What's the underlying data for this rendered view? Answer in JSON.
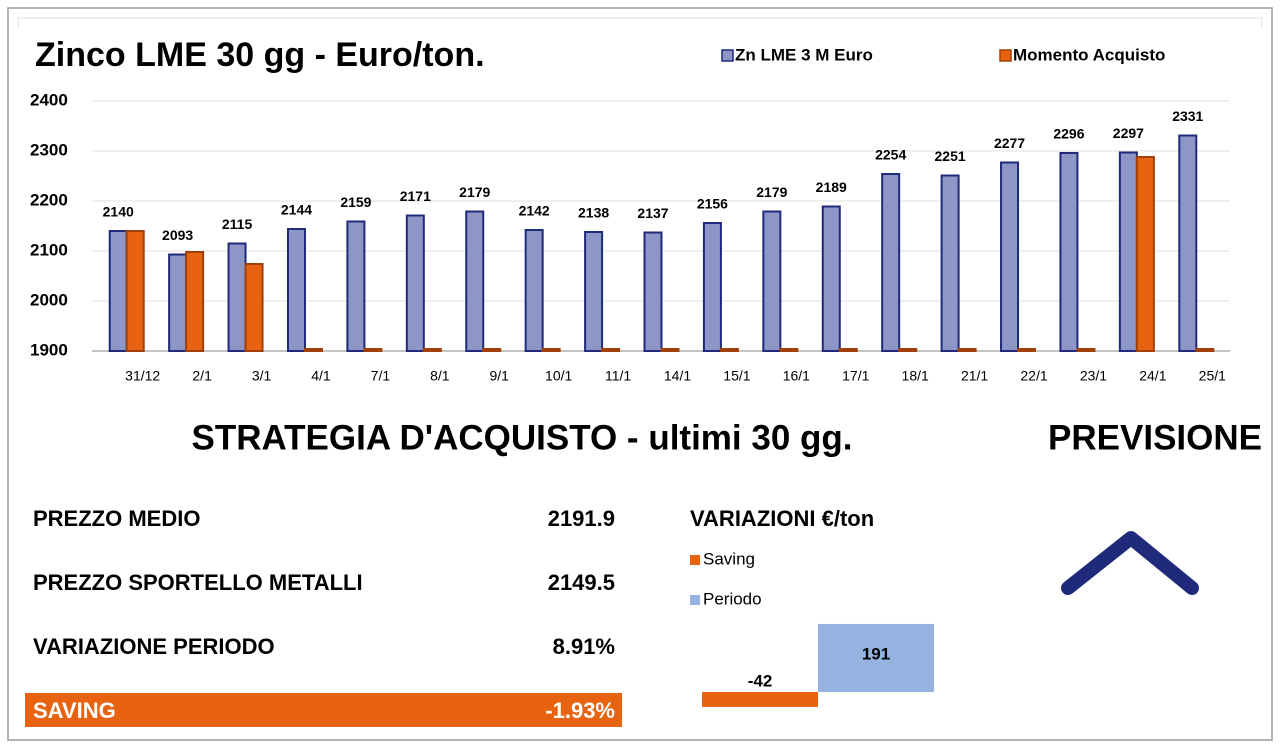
{
  "chart_data": [
    {
      "type": "bar",
      "title": "Zinco  LME 30 gg - Euro/ton.",
      "categories": [
        "31/12",
        "2/1",
        "3/1",
        "4/1",
        "7/1",
        "8/1",
        "9/1",
        "10/1",
        "11/1",
        "14/1",
        "15/1",
        "16/1",
        "17/1",
        "18/1",
        "21/1",
        "22/1",
        "23/1",
        "24/1",
        "25/1"
      ],
      "series": [
        {
          "name": "Zn LME 3 M Euro",
          "color": "#8e96c8",
          "values": [
            2140,
            2093,
            2115,
            2144,
            2159,
            2171,
            2179,
            2142,
            2138,
            2137,
            2156,
            2179,
            2189,
            2254,
            2251,
            2277,
            2296,
            2297,
            2331
          ]
        },
        {
          "name": "Momento Acquisto",
          "color": "#e8630f",
          "values": [
            2140,
            2098,
            2074,
            1904,
            1904,
            1904,
            1904,
            1904,
            1904,
            1904,
            1904,
            1904,
            1904,
            1904,
            1904,
            1904,
            1904,
            2288,
            1904
          ]
        }
      ],
      "ylim": [
        1900,
        2400
      ],
      "yticks": [
        1900,
        2000,
        2100,
        2200,
        2300,
        2400
      ],
      "grid": true
    },
    {
      "type": "bar",
      "title": "VARIAZIONI €/ton",
      "categories": [
        null
      ],
      "series": [
        {
          "name": "Saving",
          "color": "#e8630f",
          "values": [
            -42
          ]
        },
        {
          "name": "Periodo",
          "color": "#95b3e0",
          "values": [
            191
          ]
        }
      ]
    }
  ],
  "panel": {
    "title": "STRATEGIA D'ACQUISTO - ultimi 30 gg.",
    "forecast": "PREVISIONE",
    "rows": [
      [
        "PREZZO MEDIO",
        "2191.9"
      ],
      [
        "PREZZO SPORTELLO METALLI",
        "2149.5"
      ],
      [
        "VARIAZIONE PERIODO",
        "8.91%"
      ]
    ],
    "saving": [
      "SAVING",
      "-1.93%"
    ]
  }
}
